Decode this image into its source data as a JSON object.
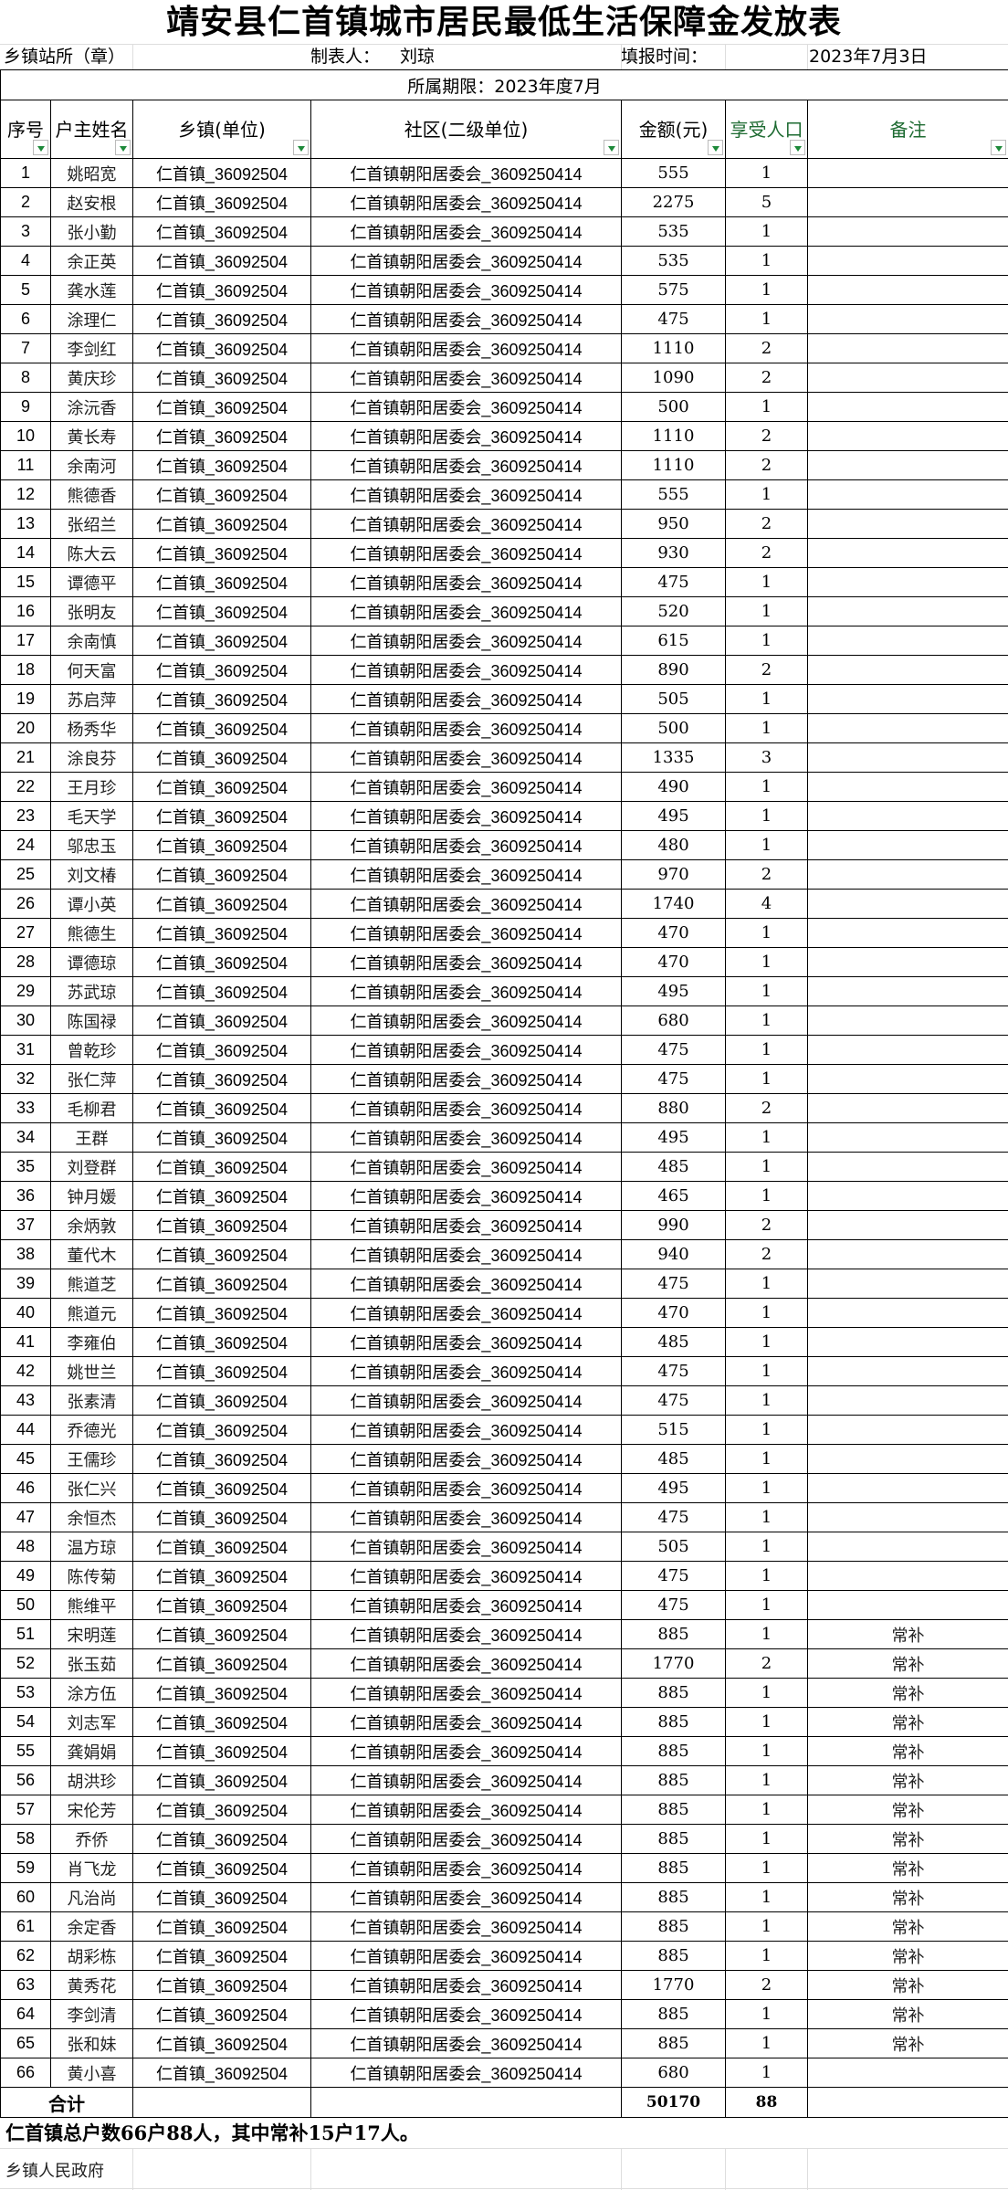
{
  "title": "靖安县仁首镇城市居民最低生活保障金发放表",
  "info": {
    "station": "乡镇站所（章）",
    "maker_label": "制表人：",
    "maker": "刘琼",
    "date_label": "填报时间：",
    "date": "2023年7月3日"
  },
  "period": "所属期限：2023年度7月",
  "headers": [
    "序号",
    "户主姓名",
    "乡镇(单位)",
    "社区(二级单位)",
    "金额(元)",
    "享受人口",
    "备注"
  ],
  "rows": [
    [
      1,
      "姚昭宽",
      "仁首镇_36092504",
      "仁首镇朝阳居委会_3609250414",
      555,
      1,
      ""
    ],
    [
      2,
      "赵安根",
      "仁首镇_36092504",
      "仁首镇朝阳居委会_3609250414",
      2275,
      5,
      ""
    ],
    [
      3,
      "张小勤",
      "仁首镇_36092504",
      "仁首镇朝阳居委会_3609250414",
      535,
      1,
      ""
    ],
    [
      4,
      "余正英",
      "仁首镇_36092504",
      "仁首镇朝阳居委会_3609250414",
      535,
      1,
      ""
    ],
    [
      5,
      "龚水莲",
      "仁首镇_36092504",
      "仁首镇朝阳居委会_3609250414",
      575,
      1,
      ""
    ],
    [
      6,
      "涂理仁",
      "仁首镇_36092504",
      "仁首镇朝阳居委会_3609250414",
      475,
      1,
      ""
    ],
    [
      7,
      "李剑红",
      "仁首镇_36092504",
      "仁首镇朝阳居委会_3609250414",
      1110,
      2,
      ""
    ],
    [
      8,
      "黄庆珍",
      "仁首镇_36092504",
      "仁首镇朝阳居委会_3609250414",
      1090,
      2,
      ""
    ],
    [
      9,
      "涂沅香",
      "仁首镇_36092504",
      "仁首镇朝阳居委会_3609250414",
      500,
      1,
      ""
    ],
    [
      10,
      "黄长寿",
      "仁首镇_36092504",
      "仁首镇朝阳居委会_3609250414",
      1110,
      2,
      ""
    ],
    [
      11,
      "余南河",
      "仁首镇_36092504",
      "仁首镇朝阳居委会_3609250414",
      1110,
      2,
      ""
    ],
    [
      12,
      "熊德香",
      "仁首镇_36092504",
      "仁首镇朝阳居委会_3609250414",
      555,
      1,
      ""
    ],
    [
      13,
      "张绍兰",
      "仁首镇_36092504",
      "仁首镇朝阳居委会_3609250414",
      950,
      2,
      ""
    ],
    [
      14,
      "陈大云",
      "仁首镇_36092504",
      "仁首镇朝阳居委会_3609250414",
      930,
      2,
      ""
    ],
    [
      15,
      "谭德平",
      "仁首镇_36092504",
      "仁首镇朝阳居委会_3609250414",
      475,
      1,
      ""
    ],
    [
      16,
      "张明友",
      "仁首镇_36092504",
      "仁首镇朝阳居委会_3609250414",
      520,
      1,
      ""
    ],
    [
      17,
      "余南慎",
      "仁首镇_36092504",
      "仁首镇朝阳居委会_3609250414",
      615,
      1,
      ""
    ],
    [
      18,
      "何天富",
      "仁首镇_36092504",
      "仁首镇朝阳居委会_3609250414",
      890,
      2,
      ""
    ],
    [
      19,
      "苏启萍",
      "仁首镇_36092504",
      "仁首镇朝阳居委会_3609250414",
      505,
      1,
      ""
    ],
    [
      20,
      "杨秀华",
      "仁首镇_36092504",
      "仁首镇朝阳居委会_3609250414",
      500,
      1,
      ""
    ],
    [
      21,
      "涂良芬",
      "仁首镇_36092504",
      "仁首镇朝阳居委会_3609250414",
      1335,
      3,
      ""
    ],
    [
      22,
      "王月珍",
      "仁首镇_36092504",
      "仁首镇朝阳居委会_3609250414",
      490,
      1,
      ""
    ],
    [
      23,
      "毛天学",
      "仁首镇_36092504",
      "仁首镇朝阳居委会_3609250414",
      495,
      1,
      ""
    ],
    [
      24,
      "邬忠玉",
      "仁首镇_36092504",
      "仁首镇朝阳居委会_3609250414",
      480,
      1,
      ""
    ],
    [
      25,
      "刘文椿",
      "仁首镇_36092504",
      "仁首镇朝阳居委会_3609250414",
      970,
      2,
      ""
    ],
    [
      26,
      "谭小英",
      "仁首镇_36092504",
      "仁首镇朝阳居委会_3609250414",
      1740,
      4,
      ""
    ],
    [
      27,
      "熊德生",
      "仁首镇_36092504",
      "仁首镇朝阳居委会_3609250414",
      470,
      1,
      ""
    ],
    [
      28,
      "谭德琼",
      "仁首镇_36092504",
      "仁首镇朝阳居委会_3609250414",
      470,
      1,
      ""
    ],
    [
      29,
      "苏武琼",
      "仁首镇_36092504",
      "仁首镇朝阳居委会_3609250414",
      495,
      1,
      ""
    ],
    [
      30,
      "陈国禄",
      "仁首镇_36092504",
      "仁首镇朝阳居委会_3609250414",
      680,
      1,
      ""
    ],
    [
      31,
      "曾乾珍",
      "仁首镇_36092504",
      "仁首镇朝阳居委会_3609250414",
      475,
      1,
      ""
    ],
    [
      32,
      "张仁萍",
      "仁首镇_36092504",
      "仁首镇朝阳居委会_3609250414",
      475,
      1,
      ""
    ],
    [
      33,
      "毛柳君",
      "仁首镇_36092504",
      "仁首镇朝阳居委会_3609250414",
      880,
      2,
      ""
    ],
    [
      34,
      "王群",
      "仁首镇_36092504",
      "仁首镇朝阳居委会_3609250414",
      495,
      1,
      ""
    ],
    [
      35,
      "刘登群",
      "仁首镇_36092504",
      "仁首镇朝阳居委会_3609250414",
      485,
      1,
      ""
    ],
    [
      36,
      "钟月媛",
      "仁首镇_36092504",
      "仁首镇朝阳居委会_3609250414",
      465,
      1,
      ""
    ],
    [
      37,
      "余炳敦",
      "仁首镇_36092504",
      "仁首镇朝阳居委会_3609250414",
      990,
      2,
      ""
    ],
    [
      38,
      "董代木",
      "仁首镇_36092504",
      "仁首镇朝阳居委会_3609250414",
      940,
      2,
      ""
    ],
    [
      39,
      "熊道芝",
      "仁首镇_36092504",
      "仁首镇朝阳居委会_3609250414",
      475,
      1,
      ""
    ],
    [
      40,
      "熊道元",
      "仁首镇_36092504",
      "仁首镇朝阳居委会_3609250414",
      470,
      1,
      ""
    ],
    [
      41,
      "李雍伯",
      "仁首镇_36092504",
      "仁首镇朝阳居委会_3609250414",
      485,
      1,
      ""
    ],
    [
      42,
      "姚世兰",
      "仁首镇_36092504",
      "仁首镇朝阳居委会_3609250414",
      475,
      1,
      ""
    ],
    [
      43,
      "张素清",
      "仁首镇_36092504",
      "仁首镇朝阳居委会_3609250414",
      475,
      1,
      ""
    ],
    [
      44,
      "乔德光",
      "仁首镇_36092504",
      "仁首镇朝阳居委会_3609250414",
      515,
      1,
      ""
    ],
    [
      45,
      "王儒珍",
      "仁首镇_36092504",
      "仁首镇朝阳居委会_3609250414",
      485,
      1,
      ""
    ],
    [
      46,
      "张仁兴",
      "仁首镇_36092504",
      "仁首镇朝阳居委会_3609250414",
      495,
      1,
      ""
    ],
    [
      47,
      "余恒杰",
      "仁首镇_36092504",
      "仁首镇朝阳居委会_3609250414",
      475,
      1,
      ""
    ],
    [
      48,
      "温方琼",
      "仁首镇_36092504",
      "仁首镇朝阳居委会_3609250414",
      505,
      1,
      ""
    ],
    [
      49,
      "陈传菊",
      "仁首镇_36092504",
      "仁首镇朝阳居委会_3609250414",
      475,
      1,
      ""
    ],
    [
      50,
      "熊维平",
      "仁首镇_36092504",
      "仁首镇朝阳居委会_3609250414",
      475,
      1,
      ""
    ],
    [
      51,
      "宋明莲",
      "仁首镇_36092504",
      "仁首镇朝阳居委会_3609250414",
      885,
      1,
      "常补"
    ],
    [
      52,
      "张玉茹",
      "仁首镇_36092504",
      "仁首镇朝阳居委会_3609250414",
      1770,
      2,
      "常补"
    ],
    [
      53,
      "涂方伍",
      "仁首镇_36092504",
      "仁首镇朝阳居委会_3609250414",
      885,
      1,
      "常补"
    ],
    [
      54,
      "刘志军",
      "仁首镇_36092504",
      "仁首镇朝阳居委会_3609250414",
      885,
      1,
      "常补"
    ],
    [
      55,
      "龚娟娟",
      "仁首镇_36092504",
      "仁首镇朝阳居委会_3609250414",
      885,
      1,
      "常补"
    ],
    [
      56,
      "胡洪珍",
      "仁首镇_36092504",
      "仁首镇朝阳居委会_3609250414",
      885,
      1,
      "常补"
    ],
    [
      57,
      "宋伦芳",
      "仁首镇_36092504",
      "仁首镇朝阳居委会_3609250414",
      885,
      1,
      "常补"
    ],
    [
      58,
      "乔侨",
      "仁首镇_36092504",
      "仁首镇朝阳居委会_3609250414",
      885,
      1,
      "常补"
    ],
    [
      59,
      "肖飞龙",
      "仁首镇_36092504",
      "仁首镇朝阳居委会_3609250414",
      885,
      1,
      "常补"
    ],
    [
      60,
      "凡治尚",
      "仁首镇_36092504",
      "仁首镇朝阳居委会_3609250414",
      885,
      1,
      "常补"
    ],
    [
      61,
      "余定香",
      "仁首镇_36092504",
      "仁首镇朝阳居委会_3609250414",
      885,
      1,
      "常补"
    ],
    [
      62,
      "胡彩栋",
      "仁首镇_36092504",
      "仁首镇朝阳居委会_3609250414",
      885,
      1,
      "常补"
    ],
    [
      63,
      "黄秀花",
      "仁首镇_36092504",
      "仁首镇朝阳居委会_3609250414",
      1770,
      2,
      "常补"
    ],
    [
      64,
      "李剑清",
      "仁首镇_36092504",
      "仁首镇朝阳居委会_3609250414",
      885,
      1,
      "常补"
    ],
    [
      65,
      "张和妹",
      "仁首镇_36092504",
      "仁首镇朝阳居委会_3609250414",
      885,
      1,
      "常补"
    ],
    [
      66,
      "黄小喜",
      "仁首镇_36092504",
      "仁首镇朝阳居委会_3609250414",
      680,
      1,
      ""
    ]
  ],
  "total": {
    "label": "合计",
    "amount": "50170",
    "persons": "88"
  },
  "note": "仁首镇总户数66户88人，其中常补15户17人。",
  "footer": "乡镇人民政府",
  "colors": {
    "header_green": "#1e6b32",
    "filter_arrow": "#1e8a3a"
  }
}
